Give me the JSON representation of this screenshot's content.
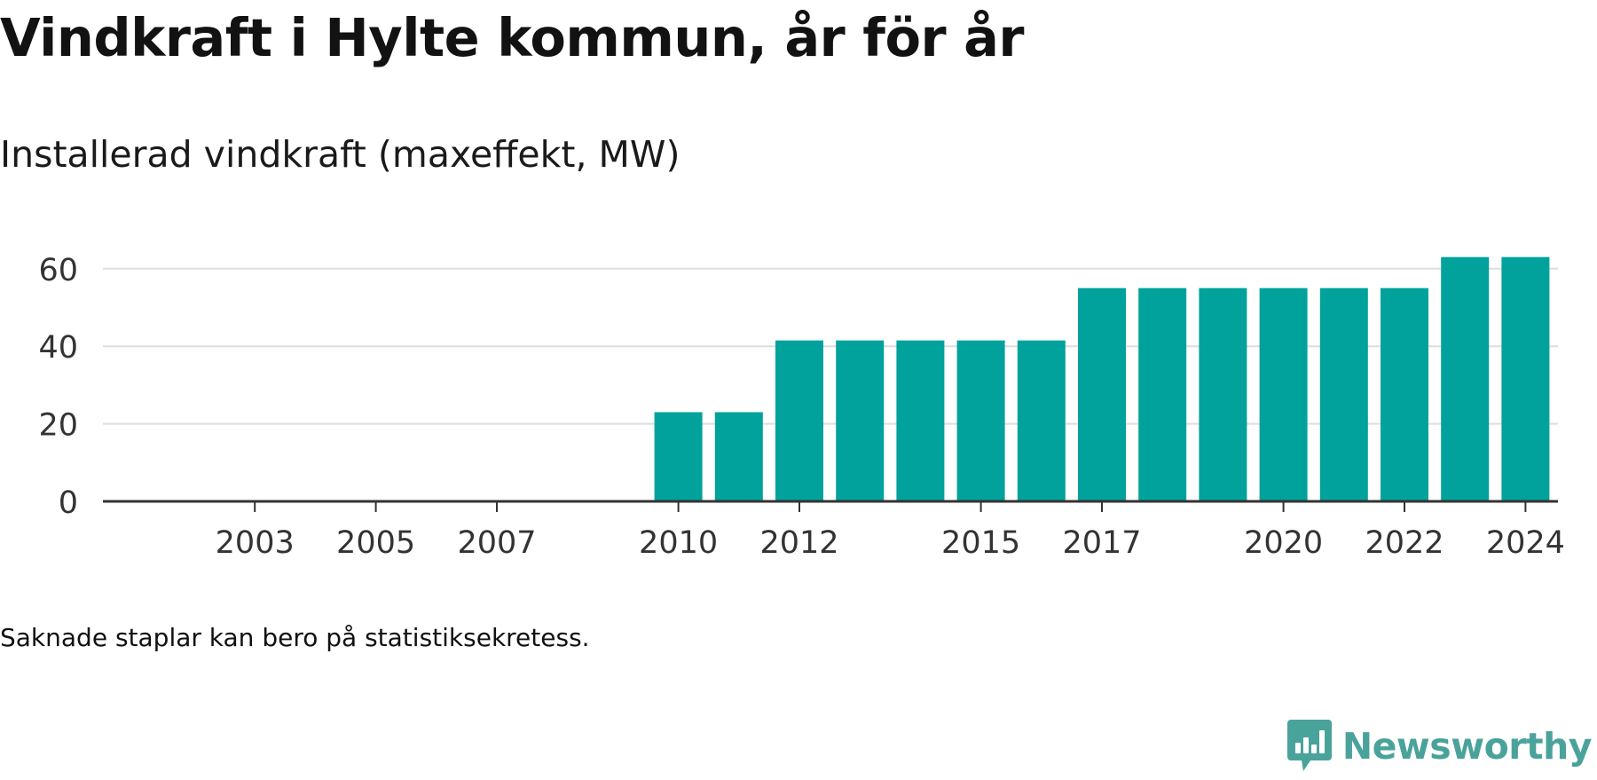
{
  "title": "Vindkraft i Hylte kommun, år för år",
  "subtitle": "Installerad vindkraft (maxeffekt, MW)",
  "note": "Saknade staplar kan bero på statistiksekretess.",
  "brand": {
    "name": "Newsworthy",
    "icon": "newsworthy-logo-icon"
  },
  "colors": {
    "bar": "#00a29b",
    "grid": "#dddddd",
    "axis": "#333333",
    "tick_text": "#333333",
    "brand": "#4aa39b"
  },
  "chart_data": {
    "type": "bar",
    "title": "Vindkraft i Hylte kommun, år för år",
    "subtitle": "Installerad vindkraft (maxeffekt, MW)",
    "xlabel": "",
    "ylabel": "",
    "categories": [
      2002,
      2003,
      2004,
      2005,
      2006,
      2007,
      2008,
      2009,
      2010,
      2011,
      2012,
      2013,
      2014,
      2015,
      2016,
      2017,
      2018,
      2019,
      2020,
      2021,
      2022,
      2023,
      2024
    ],
    "values": [
      null,
      null,
      null,
      null,
      null,
      null,
      null,
      null,
      23,
      23,
      41.5,
      41.5,
      41.5,
      41.5,
      41.5,
      55,
      55,
      55,
      55,
      55,
      55,
      63,
      63
    ],
    "x_tick_labels": [
      "2003",
      "2005",
      "2007",
      "2010",
      "2012",
      "2015",
      "2017",
      "2020",
      "2022",
      "2024"
    ],
    "y_ticks": [
      0,
      20,
      40,
      60
    ],
    "ylim": [
      0,
      63
    ],
    "grid": true,
    "legend": "none"
  }
}
